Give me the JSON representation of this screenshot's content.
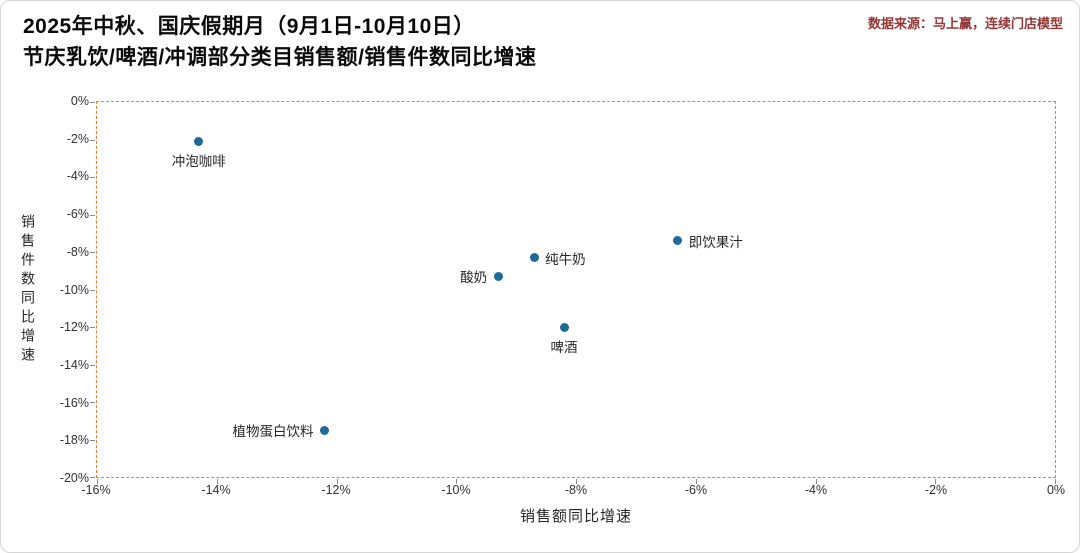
{
  "title": {
    "line1": "2025年中秋、国庆假期月（9月1日-10月10日）",
    "line2": "节庆乳饮/啤酒/冲调部分类目销售额/销售件数同比增速"
  },
  "source": "数据来源：马上赢，连续门店模型",
  "colors": {
    "dot": "#1d6a96",
    "plot_border": "#ed7d31",
    "source_text": "#943634",
    "tick_text": "#333333"
  },
  "chart_data": {
    "type": "scatter",
    "title": "2025年中秋、国庆假期月（9月1日-10月10日）节庆乳饮/啤酒/冲调部分类目销售额/销售件数同比增速",
    "xlabel": "销售额同比增速",
    "ylabel": "销售件数同比增速",
    "xlim": [
      -16,
      0
    ],
    "ylim": [
      -20,
      0
    ],
    "grid": false,
    "legend": null,
    "x_ticks": [
      "-16%",
      "-14%",
      "-12%",
      "-10%",
      "-8%",
      "-6%",
      "-4%",
      "-2%",
      "0%"
    ],
    "y_ticks": [
      "0%",
      "-2%",
      "-4%",
      "-6%",
      "-8%",
      "-10%",
      "-12%",
      "-14%",
      "-16%",
      "-18%",
      "-20%"
    ],
    "points": [
      {
        "label": "冲泡咖啡",
        "x": -14.3,
        "y": -2.1,
        "label_position": "below"
      },
      {
        "label": "即饮果汁",
        "x": -6.3,
        "y": -7.4,
        "label_position": "right"
      },
      {
        "label": "纯牛奶",
        "x": -8.7,
        "y": -8.3,
        "label_position": "right"
      },
      {
        "label": "酸奶",
        "x": -9.3,
        "y": -9.3,
        "label_position": "left"
      },
      {
        "label": "啤酒",
        "x": -8.2,
        "y": -12.0,
        "label_position": "below"
      },
      {
        "label": "植物蛋白饮料",
        "x": -12.2,
        "y": -17.5,
        "label_position": "left"
      }
    ]
  }
}
